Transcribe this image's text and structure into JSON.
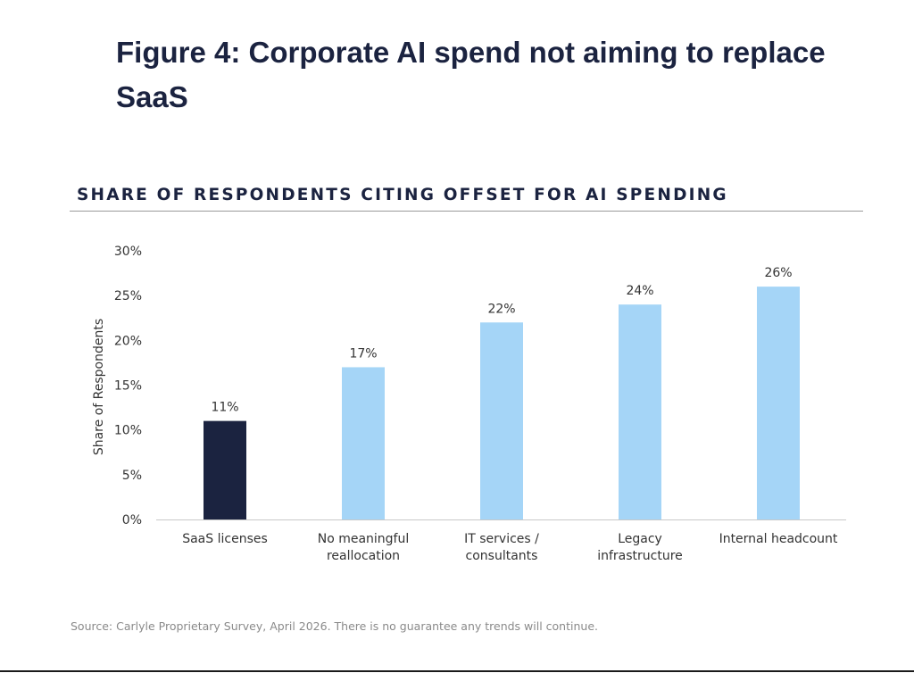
{
  "figure": {
    "title": "Figure 4: Corporate AI spend not aiming to replace SaaS",
    "section_heading": "SHARE OF RESPONDENTS CITING OFFSET FOR AI SPENDING",
    "source": "Source: Carlyle Proprietary Survey, April 2026. There is no guarantee any trends will continue."
  },
  "chart_data": {
    "type": "bar",
    "title": "",
    "xlabel": "",
    "ylabel": "Share of Respondents",
    "categories": [
      [
        "SaaS licenses"
      ],
      [
        "No meaningful",
        "reallocation"
      ],
      [
        "IT services /",
        "consultants"
      ],
      [
        "Legacy",
        "infrastructure"
      ],
      [
        "Internal headcount"
      ]
    ],
    "values": [
      11,
      17,
      22,
      24,
      26
    ],
    "data_labels": [
      "11%",
      "17%",
      "22%",
      "24%",
      "26%"
    ],
    "ylim": [
      0,
      30
    ],
    "yticks": [
      0,
      5,
      10,
      15,
      20,
      25,
      30
    ],
    "ytick_labels": [
      "0%",
      "5%",
      "10%",
      "15%",
      "20%",
      "25%",
      "30%"
    ],
    "grid": false,
    "legend": "none",
    "bar_colors": [
      "#1b2340",
      "#a5d5f7",
      "#a5d5f7",
      "#a5d5f7",
      "#a5d5f7"
    ],
    "axis_color": "#c8c8c8",
    "text_color": "#333333"
  }
}
